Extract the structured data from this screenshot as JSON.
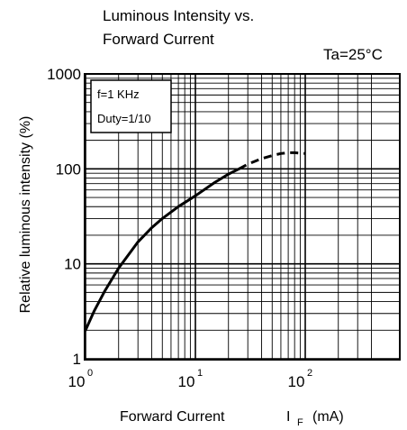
{
  "chart_data": {
    "type": "line",
    "title_lines": [
      "Luminous Intensity vs.",
      "Forward Current"
    ],
    "condition": "Ta=25°C",
    "legend_lines": [
      "f=1 KHz",
      "Duty=1/10"
    ],
    "xlabel": "Forward Current",
    "xlabel_symbol": "I",
    "xlabel_subscript": "F",
    "xlabel_unit": "(mA)",
    "ylabel": "Relative luminous intensity  (%)",
    "x_scale": "log",
    "y_scale": "log",
    "xlim": [
      1,
      400
    ],
    "ylim": [
      1,
      1000
    ],
    "x_ticks": [
      {
        "value": 1,
        "base": "10",
        "exp": "0"
      },
      {
        "value": 10,
        "base": "10",
        "exp": "1"
      },
      {
        "value": 100,
        "base": "10",
        "exp": "2"
      }
    ],
    "y_ticks": [
      {
        "value": 1,
        "label": "1"
      },
      {
        "value": 10,
        "label": "10"
      },
      {
        "value": 100,
        "label": "100"
      },
      {
        "value": 1000,
        "label": "1000"
      }
    ],
    "grid": true,
    "series": [
      {
        "style": "solid",
        "x": [
          1,
          1.2,
          1.5,
          2,
          3,
          4,
          5,
          7,
          10,
          15,
          20,
          25
        ],
        "y": [
          2,
          3.2,
          5.2,
          9,
          17,
          24,
          30,
          40,
          52,
          72,
          88,
          100
        ]
      },
      {
        "style": "dashed",
        "x": [
          25,
          30,
          40,
          50,
          60,
          70,
          80,
          100
        ],
        "y": [
          100,
          112,
          128,
          138,
          145,
          148,
          148,
          145
        ]
      }
    ]
  }
}
